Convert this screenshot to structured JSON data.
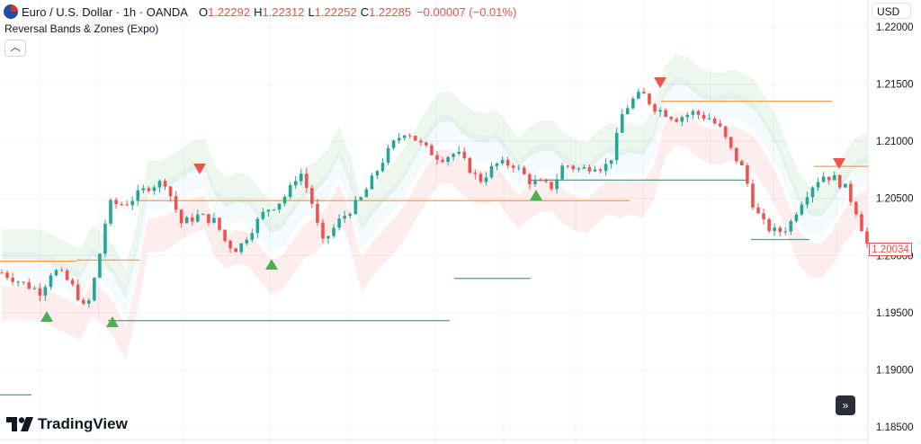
{
  "header": {
    "symbol": "Euro / U.S. Dollar · 1h · OANDA",
    "open_label": "O",
    "open": "1.22292",
    "high_label": "H",
    "high": "1.22312",
    "low_label": "L",
    "low": "1.22252",
    "close_label": "C",
    "close": "1.22285",
    "change": "−0.00007 (−0.01%)"
  },
  "indicator": {
    "name": "Reversal Bands & Zones (Expo)"
  },
  "collapse_icon": "chevron-up-icon",
  "currency_button": "USD",
  "last_price_label": "1.20034",
  "logo": {
    "text": "TradingView"
  },
  "goto_realtime_icon": "double-chevron-right-icon",
  "colors": {
    "bull": "#26a69a",
    "bear": "#ef5350",
    "zone_top": "#f0a04b",
    "zone_bottom": "#5b9a8b",
    "signal_up": "#4caf50",
    "signal_down": "#ef5350"
  },
  "chart_data": {
    "type": "candlestick",
    "y_ticks": [
      "1.22000",
      "1.21500",
      "1.21000",
      "1.20500",
      "1.20000",
      "1.19500",
      "1.19000",
      "1.18500"
    ],
    "ylim": [
      1.1835,
      1.2215
    ],
    "grid": true,
    "x_count": 160,
    "price_path": [
      [
        0,
        1.1985
      ],
      [
        8,
        1.1975
      ],
      [
        14,
        1.1968
      ],
      [
        18,
        1.1988
      ],
      [
        22,
        1.1982
      ],
      [
        26,
        1.197
      ],
      [
        30,
        1.195
      ],
      [
        34,
        1.199
      ],
      [
        38,
        1.2045
      ],
      [
        44,
        1.2045
      ],
      [
        52,
        1.206
      ],
      [
        58,
        1.2065
      ],
      [
        64,
        1.2028
      ],
      [
        70,
        1.2035
      ],
      [
        76,
        1.203
      ],
      [
        80,
        1.201
      ],
      [
        84,
        1.2005
      ],
      [
        88,
        1.202
      ],
      [
        94,
        1.204
      ],
      [
        98,
        1.2045
      ],
      [
        102,
        1.2055
      ],
      [
        106,
        1.2075
      ],
      [
        110,
        1.205
      ],
      [
        114,
        1.201
      ],
      [
        120,
        1.203
      ],
      [
        128,
        1.205
      ],
      [
        136,
        1.2085
      ],
      [
        140,
        1.21
      ],
      [
        144,
        1.211
      ],
      [
        150,
        1.2095
      ],
      [
        156,
        1.2085
      ],
      [
        162,
        1.209
      ],
      [
        170,
        1.2065
      ],
      [
        176,
        1.208
      ],
      [
        182,
        1.208
      ],
      [
        188,
        1.2065
      ],
      [
        196,
        1.206
      ],
      [
        200,
        1.208
      ],
      [
        206,
        1.2075
      ],
      [
        212,
        1.208
      ],
      [
        214,
        1.2075
      ],
      [
        218,
        1.209
      ],
      [
        220,
        1.212
      ],
      [
        224,
        1.2135
      ],
      [
        228,
        1.2142
      ],
      [
        232,
        1.213
      ],
      [
        236,
        1.2125
      ],
      [
        240,
        1.212
      ],
      [
        246,
        1.2125
      ],
      [
        252,
        1.212
      ],
      [
        256,
        1.211
      ],
      [
        260,
        1.209
      ],
      [
        264,
        1.2075
      ],
      [
        268,
        1.204
      ],
      [
        272,
        1.2025
      ],
      [
        276,
        1.202
      ],
      [
        280,
        1.2025
      ],
      [
        284,
        1.2045
      ],
      [
        288,
        1.206
      ],
      [
        292,
        1.207
      ],
      [
        296,
        1.2068
      ],
      [
        300,
        1.206
      ],
      [
        304,
        1.204
      ],
      [
        308,
        1.201
      ]
    ],
    "horizontal_levels": [
      {
        "kind": "resistance",
        "price": 1.2048
      },
      {
        "kind": "resistance",
        "price": 1.2135
      },
      {
        "kind": "resistance",
        "price": 1.2078
      },
      {
        "kind": "resistance",
        "price": 1.1995
      },
      {
        "kind": "resistance",
        "price": 1.1996
      },
      {
        "kind": "support",
        "price": 1.1943
      },
      {
        "kind": "support",
        "price": 1.198
      },
      {
        "kind": "support",
        "price": 1.2066
      },
      {
        "kind": "support",
        "price": 1.2014
      },
      {
        "kind": "support",
        "price": 1.1878
      }
    ],
    "signals": [
      {
        "dir": "up"
      },
      {
        "dir": "up"
      },
      {
        "dir": "up"
      },
      {
        "dir": "up"
      },
      {
        "dir": "down"
      },
      {
        "dir": "down"
      },
      {
        "dir": "down"
      }
    ]
  }
}
